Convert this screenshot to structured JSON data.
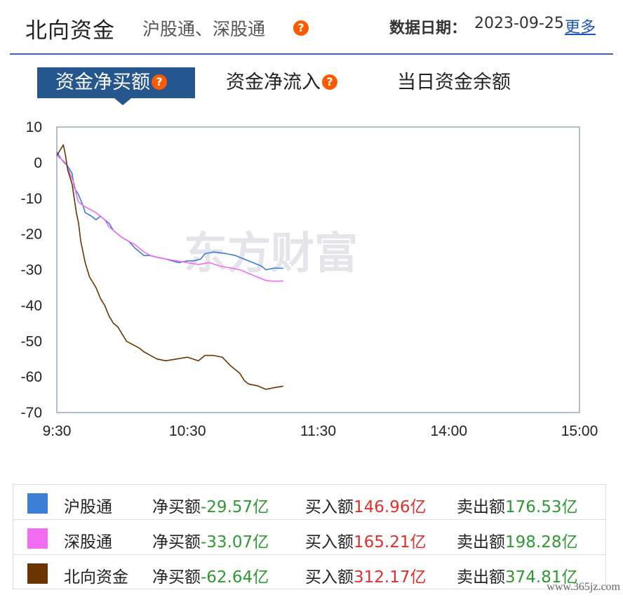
{
  "header": {
    "title": "北向资金",
    "subtitle": "沪股通、深股通",
    "date_label": "数据日期：",
    "date": "2023-09-25",
    "more": "更多",
    "help": "?"
  },
  "tabs": [
    {
      "label": "资金净买额",
      "help": "?"
    },
    {
      "label": "资金净流入",
      "help": "?"
    },
    {
      "label": "当日资金余额"
    }
  ],
  "watermark": "东方财富",
  "chart_data": {
    "type": "line",
    "x_ticks": [
      "9:30",
      "10:30",
      "11:30",
      "14:00",
      "15:00"
    ],
    "y_ticks": [
      "10",
      "0",
      "-10",
      "-20",
      "-30",
      "-40",
      "-50",
      "-60",
      "-70"
    ],
    "ylim": [
      -70,
      10
    ],
    "xlim_minutes": [
      0,
      240
    ],
    "grid": false,
    "series": [
      {
        "name": "沪股通",
        "color": "#3a7fd5",
        "points": [
          [
            0,
            3
          ],
          [
            2,
            1
          ],
          [
            5,
            -1
          ],
          [
            7,
            -3
          ],
          [
            8,
            -7
          ],
          [
            9,
            -8
          ],
          [
            10,
            -9
          ],
          [
            12,
            -12
          ],
          [
            13,
            -14
          ],
          [
            16,
            -15
          ],
          [
            18,
            -16
          ],
          [
            20,
            -15
          ],
          [
            22,
            -16
          ],
          [
            24,
            -17
          ],
          [
            26,
            -19
          ],
          [
            28,
            -20
          ],
          [
            30,
            -21
          ],
          [
            33,
            -22
          ],
          [
            36,
            -24
          ],
          [
            38,
            -25
          ],
          [
            40,
            -26
          ],
          [
            43,
            -26
          ],
          [
            46,
            -26.5
          ],
          [
            50,
            -27
          ],
          [
            53,
            -27.5
          ],
          [
            56,
            -28
          ],
          [
            60,
            -27.5
          ],
          [
            63,
            -27.5
          ],
          [
            66,
            -27
          ],
          [
            68,
            -25.5
          ],
          [
            72,
            -25
          ],
          [
            78,
            -25.5
          ],
          [
            82,
            -26
          ],
          [
            86,
            -27
          ],
          [
            90,
            -28
          ],
          [
            94,
            -29
          ],
          [
            96,
            -30
          ],
          [
            100,
            -29.5
          ],
          [
            104,
            -29.6
          ]
        ]
      },
      {
        "name": "深股通",
        "color": "#f06cf0",
        "points": [
          [
            0,
            2
          ],
          [
            2,
            1
          ],
          [
            4,
            0
          ],
          [
            6,
            -3
          ],
          [
            8,
            -6
          ],
          [
            9,
            -9
          ],
          [
            10,
            -11
          ],
          [
            12,
            -12
          ],
          [
            15,
            -13
          ],
          [
            18,
            -14
          ],
          [
            20,
            -15
          ],
          [
            22,
            -16
          ],
          [
            24,
            -18
          ],
          [
            26,
            -19
          ],
          [
            28,
            -20
          ],
          [
            30,
            -21
          ],
          [
            33,
            -22
          ],
          [
            36,
            -23
          ],
          [
            40,
            -25
          ],
          [
            43,
            -26
          ],
          [
            46,
            -26.5
          ],
          [
            50,
            -27
          ],
          [
            55,
            -27.5
          ],
          [
            60,
            -28
          ],
          [
            65,
            -28.5
          ],
          [
            70,
            -28
          ],
          [
            75,
            -29
          ],
          [
            80,
            -29.5
          ],
          [
            84,
            -30
          ],
          [
            88,
            -31
          ],
          [
            92,
            -32
          ],
          [
            96,
            -33
          ],
          [
            100,
            -33.2
          ],
          [
            104,
            -33.1
          ]
        ]
      },
      {
        "name": "北向资金",
        "color": "#6b3400",
        "points": [
          [
            0,
            2
          ],
          [
            2,
            4
          ],
          [
            3,
            5
          ],
          [
            4,
            2
          ],
          [
            5,
            -2
          ],
          [
            7,
            -6
          ],
          [
            8,
            -10
          ],
          [
            9,
            -14
          ],
          [
            10,
            -17
          ],
          [
            11,
            -22
          ],
          [
            12,
            -25
          ],
          [
            13,
            -28
          ],
          [
            14,
            -30
          ],
          [
            15,
            -32
          ],
          [
            16,
            -33
          ],
          [
            18,
            -35
          ],
          [
            20,
            -38
          ],
          [
            22,
            -40
          ],
          [
            24,
            -43
          ],
          [
            26,
            -45
          ],
          [
            28,
            -46
          ],
          [
            30,
            -48
          ],
          [
            32,
            -50
          ],
          [
            35,
            -51
          ],
          [
            38,
            -52
          ],
          [
            40,
            -53
          ],
          [
            43,
            -54
          ],
          [
            46,
            -55
          ],
          [
            50,
            -55.5
          ],
          [
            55,
            -55
          ],
          [
            60,
            -54.5
          ],
          [
            65,
            -55.5
          ],
          [
            68,
            -54
          ],
          [
            72,
            -54
          ],
          [
            76,
            -54.5
          ],
          [
            80,
            -57
          ],
          [
            84,
            -59
          ],
          [
            86,
            -61
          ],
          [
            88,
            -62
          ],
          [
            92,
            -62.5
          ],
          [
            96,
            -63.5
          ],
          [
            100,
            -63
          ],
          [
            104,
            -62.6
          ]
        ]
      }
    ]
  },
  "legend": [
    {
      "name": "沪股通",
      "color": "#3a7fd5",
      "net_label": "净买额",
      "net": "-29.57亿",
      "buy_label": "买入额",
      "buy": "146.96亿",
      "sell_label": "卖出额",
      "sell": "176.53亿"
    },
    {
      "name": "深股通",
      "color": "#f06cf0",
      "net_label": "净买额",
      "net": "-33.07亿",
      "buy_label": "买入额",
      "buy": "165.21亿",
      "sell_label": "卖出额",
      "sell": "198.28亿"
    },
    {
      "name": "北向资金",
      "color": "#6b3400",
      "net_label": "净买额",
      "net": "-62.64亿",
      "buy_label": "买入额",
      "buy": "312.17亿",
      "sell_label": "卖出额",
      "sell": "374.81亿"
    }
  ],
  "site_mark": "www.365jz.com"
}
